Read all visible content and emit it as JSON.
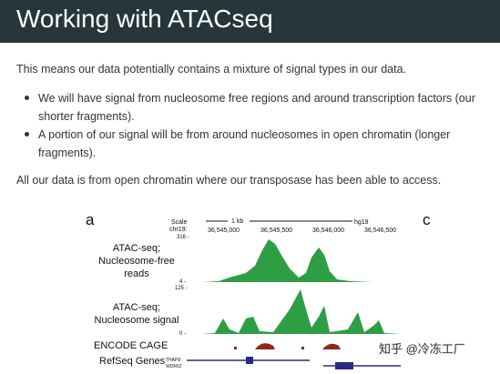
{
  "header": {
    "title": "Working with ATACseq"
  },
  "body": {
    "intro": "This means our data potentially contains a mixture of signal types in our data.",
    "bullets": [
      [
        "We will have signal from nucleosome free regions and around transcription factors (our",
        "shorter fragments)."
      ],
      [
        "A portion of our signal will be from around nucleosomes in open chromatin (longer",
        "fragments)."
      ]
    ],
    "outro": "All our data is from open chromatin where our transposase has been able to access."
  },
  "figure": {
    "panel_a": "a",
    "panel_c": "c",
    "scale": "Scale",
    "chrom": "chr19:",
    "kb": "1 kb",
    "build": "hg19",
    "positions": [
      "36,545,000",
      "36,545,500",
      "36,546,000",
      "36,546,500"
    ],
    "track1_label": [
      "ATAC-seq;",
      "Nucleosome-free",
      "reads"
    ],
    "track1_top": "316 -",
    "track1_bottom": "4 -",
    "track2_top": "125 -",
    "track2_bottom": "0 -",
    "track2_label": [
      "ATAC-seq;",
      "Nucleosome signal"
    ],
    "track3_label": "ENCODE CAGE",
    "track4_label": "RefSeq Genes",
    "genes": [
      "THAP8",
      "WDR62"
    ]
  },
  "watermark": "知乎 @冷冻工厂"
}
